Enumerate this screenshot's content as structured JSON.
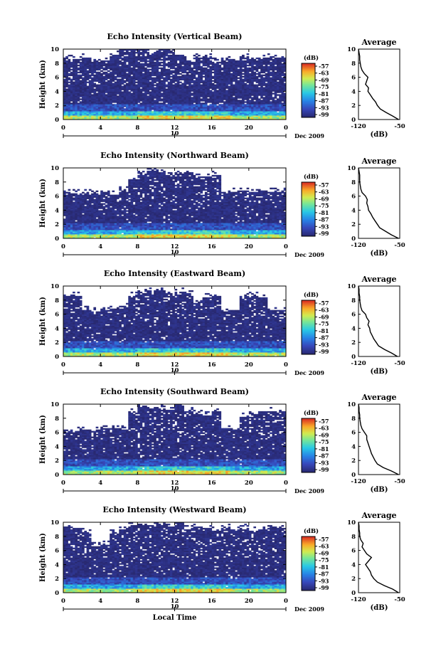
{
  "chart_data": [
    {
      "type": "heatmap",
      "title": "Echo Intensity (Vertical Beam)",
      "xlabel": "",
      "ylabel": "Height (km)",
      "xticks": [
        "0",
        "4",
        "8",
        "12",
        "16",
        "20",
        "0"
      ],
      "yticks": [
        "0",
        "2",
        "4",
        "6",
        "8",
        "10"
      ],
      "xlim": [
        0,
        24
      ],
      "ylim": [
        0,
        10
      ],
      "day_label": "10",
      "date_label": "Dec 2009",
      "colorbar": {
        "title": "(dB)",
        "ticks": [
          "-57",
          "-63",
          "-69",
          "-75",
          "-81",
          "-87",
          "-93",
          "-99"
        ],
        "range": [
          -99,
          -57
        ]
      },
      "cloud_top_km": [
        8.6,
        8.6,
        8.8,
        8.3,
        8.4,
        9.2,
        10.0,
        10.0,
        10.0,
        9.6,
        9.8,
        10.0,
        9.1,
        8.4,
        8.8,
        8.9,
        8.2,
        8.6,
        8.3,
        8.9,
        8.5,
        8.6,
        8.8,
        8.7
      ],
      "average_profile": {
        "title": "Average",
        "xlabel": "(dB)",
        "xticks": [
          "-120",
          "-50"
        ],
        "xlim": [
          -120,
          -50
        ],
        "height_km": [
          0,
          0.5,
          1,
          1.5,
          2,
          2.5,
          3,
          3.5,
          4,
          4.5,
          5,
          5.5,
          6,
          6.5,
          7,
          7.5,
          8,
          8.5,
          9,
          9.5,
          10
        ],
        "value_db": [
          -52,
          -62,
          -73,
          -83,
          -88,
          -91,
          -96,
          -100,
          -104,
          -103,
          -108,
          -106,
          -104,
          -110,
          -114,
          -116,
          -117,
          -118,
          -118,
          -119,
          -120
        ]
      }
    },
    {
      "type": "heatmap",
      "title": "Echo Intensity (Northward Beam)",
      "xlabel": "",
      "ylabel": "Height (km)",
      "xticks": [
        "0",
        "4",
        "8",
        "12",
        "16",
        "20",
        "0"
      ],
      "yticks": [
        "0",
        "2",
        "4",
        "6",
        "8",
        "10"
      ],
      "xlim": [
        0,
        24
      ],
      "ylim": [
        0,
        10
      ],
      "day_label": "10",
      "date_label": "Dec 2009",
      "colorbar": {
        "title": "(dB)",
        "ticks": [
          "-57",
          "-63",
          "-69",
          "-75",
          "-81",
          "-87",
          "-93",
          "-99"
        ],
        "range": [
          -99,
          -57
        ]
      },
      "cloud_top_km": [
        6.6,
        6.4,
        6.5,
        6.3,
        6.6,
        6.2,
        6.8,
        8.4,
        9.0,
        9.6,
        9.4,
        9.0,
        9.2,
        9.3,
        8.6,
        8.8,
        9.0,
        6.5,
        6.6,
        6.8,
        6.5,
        6.7,
        6.6,
        6.6
      ],
      "average_profile": {
        "title": "Average",
        "xlabel": "(dB)",
        "xticks": [
          "-120",
          "-50"
        ],
        "xlim": [
          -120,
          -50
        ],
        "height_km": [
          0,
          0.5,
          1,
          1.5,
          2,
          2.5,
          3,
          3.5,
          4,
          4.5,
          5,
          5.5,
          6,
          6.5,
          7,
          7.5,
          8,
          8.5,
          9,
          9.5,
          10
        ],
        "value_db": [
          -52,
          -64,
          -74,
          -84,
          -88,
          -92,
          -96,
          -99,
          -103,
          -104,
          -106,
          -105,
          -108,
          -114,
          -116,
          -117,
          -118,
          -118,
          -118,
          -119,
          -120
        ]
      }
    },
    {
      "type": "heatmap",
      "title": "Echo Intensity (Eastward Beam)",
      "xlabel": "",
      "ylabel": "Height (km)",
      "xticks": [
        "0",
        "4",
        "8",
        "12",
        "16",
        "20",
        "0"
      ],
      "yticks": [
        "0",
        "2",
        "4",
        "6",
        "8",
        "10"
      ],
      "xlim": [
        0,
        24
      ],
      "ylim": [
        0,
        10
      ],
      "day_label": "10",
      "date_label": "Dec 2009",
      "colorbar": {
        "title": "(dB)",
        "ticks": [
          "-57",
          "-63",
          "-69",
          "-75",
          "-81",
          "-87",
          "-93",
          "-99"
        ],
        "range": [
          -99,
          -57
        ]
      },
      "cloud_top_km": [
        8.5,
        8.6,
        6.6,
        6.4,
        6.5,
        6.8,
        7.2,
        8.6,
        9.0,
        9.4,
        9.3,
        9.0,
        9.2,
        8.9,
        8.0,
        8.4,
        8.6,
        6.4,
        6.5,
        8.5,
        8.6,
        8.4,
        6.6,
        6.5
      ],
      "average_profile": {
        "title": "Average",
        "xlabel": "(dB)",
        "xticks": [
          "-120",
          "-50"
        ],
        "xlim": [
          -120,
          -50
        ],
        "height_km": [
          0,
          0.5,
          1,
          1.5,
          2,
          2.5,
          3,
          3.5,
          4,
          4.5,
          5,
          5.5,
          6,
          6.5,
          7,
          7.5,
          8,
          8.5,
          9,
          9.5,
          10
        ],
        "value_db": [
          -54,
          -64,
          -76,
          -86,
          -90,
          -94,
          -97,
          -100,
          -101,
          -104,
          -102,
          -106,
          -108,
          -114,
          -116,
          -117,
          -118,
          -118,
          -119,
          -119,
          -120
        ]
      }
    },
    {
      "type": "heatmap",
      "title": "Echo Intensity (Southward Beam)",
      "xlabel": "",
      "ylabel": "Height (km)",
      "xticks": [
        "0",
        "4",
        "8",
        "12",
        "16",
        "20",
        "0"
      ],
      "yticks": [
        "0",
        "2",
        "4",
        "6",
        "8",
        "10"
      ],
      "xlim": [
        0,
        24
      ],
      "ylim": [
        0,
        10
      ],
      "day_label": "10",
      "date_label": "Dec 2009",
      "colorbar": {
        "title": "(dB)",
        "ticks": [
          "-57",
          "-63",
          "-69",
          "-75",
          "-81",
          "-87",
          "-93",
          "-99"
        ],
        "range": [
          -99,
          -57
        ]
      },
      "cloud_top_km": [
        6.4,
        6.2,
        6.3,
        6.2,
        6.5,
        6.6,
        6.4,
        8.8,
        9.8,
        9.6,
        9.4,
        9.2,
        9.8,
        9.0,
        8.6,
        8.4,
        8.9,
        6.5,
        6.3,
        8.2,
        8.6,
        8.9,
        9.0,
        8.7
      ],
      "average_profile": {
        "title": "Average",
        "xlabel": "(dB)",
        "xticks": [
          "-120",
          "-50"
        ],
        "xlim": [
          -120,
          -50
        ],
        "height_km": [
          0,
          0.5,
          1,
          1.5,
          2,
          2.5,
          3,
          3.5,
          4,
          4.5,
          5,
          5.5,
          6,
          6.5,
          7,
          7.5,
          8,
          8.5,
          9,
          9.5,
          10
        ],
        "value_db": [
          -52,
          -64,
          -78,
          -88,
          -92,
          -95,
          -98,
          -100,
          -102,
          -104,
          -106,
          -106,
          -110,
          -114,
          -116,
          -117,
          -118,
          -118,
          -119,
          -119,
          -120
        ]
      }
    },
    {
      "type": "heatmap",
      "title": "Echo Intensity (Westward Beam)",
      "xlabel": "Local Time",
      "ylabel": "Height (km)",
      "xticks": [
        "0",
        "4",
        "8",
        "12",
        "16",
        "20",
        "0"
      ],
      "yticks": [
        "0",
        "2",
        "4",
        "6",
        "8",
        "10"
      ],
      "xlim": [
        0,
        24
      ],
      "ylim": [
        0,
        10
      ],
      "day_label": "10",
      "date_label": "Dec 2009",
      "colorbar": {
        "title": "(dB)",
        "ticks": [
          "-57",
          "-63",
          "-69",
          "-75",
          "-81",
          "-87",
          "-93",
          "-99"
        ],
        "range": [
          -99,
          -57
        ]
      },
      "cloud_top_km": [
        9.4,
        9.2,
        8.6,
        6.6,
        6.8,
        8.4,
        9.0,
        9.6,
        9.8,
        9.6,
        9.8,
        9.4,
        10.0,
        9.0,
        9.3,
        9.1,
        8.8,
        9.2,
        9.0,
        9.2,
        8.8,
        9.0,
        9.3,
        9.1
      ],
      "average_profile": {
        "title": "Average",
        "xlabel": "(dB)",
        "xticks": [
          "-120",
          "-50"
        ],
        "xlim": [
          -120,
          -50
        ],
        "height_km": [
          0,
          0.5,
          1,
          1.5,
          2,
          2.5,
          3,
          3.5,
          4,
          4.5,
          5,
          5.5,
          6,
          6.5,
          7,
          7.5,
          8,
          8.5,
          9,
          9.5,
          10
        ],
        "value_db": [
          -52,
          -62,
          -76,
          -88,
          -94,
          -98,
          -100,
          -104,
          -108,
          -103,
          -98,
          -106,
          -110,
          -114,
          -112,
          -116,
          -118,
          -118,
          -119,
          -119,
          -120
        ]
      }
    }
  ]
}
